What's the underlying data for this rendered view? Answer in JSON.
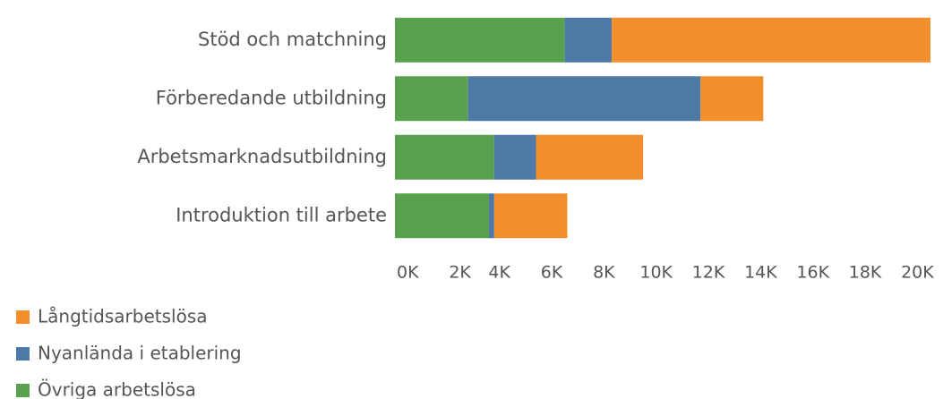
{
  "chart_data": {
    "type": "bar",
    "orientation": "horizontal",
    "stacked": true,
    "categories": [
      "Stöd och matchning",
      "Förberedande utbildning",
      "Arbetsmarknadsutbildning",
      "Introduktion till arbete"
    ],
    "series": [
      {
        "name": "Långtidsarbetslösa",
        "color": "#f28e2b",
        "values": [
          12.2,
          2.4,
          4.1,
          2.8
        ]
      },
      {
        "name": "Nyanlända i etablering",
        "color": "#4e79a7",
        "values": [
          1.8,
          8.9,
          1.6,
          0.2
        ]
      },
      {
        "name": "Övriga arbetslösa",
        "color": "#59a14f",
        "values": [
          6.5,
          2.8,
          3.8,
          3.6
        ]
      }
    ],
    "xlim": [
      0,
      20.5
    ],
    "xticks": [
      {
        "value": 0,
        "label": "0K"
      },
      {
        "value": 2,
        "label": "2K"
      },
      {
        "value": 4,
        "label": "4K"
      },
      {
        "value": 6,
        "label": "6K"
      },
      {
        "value": 8,
        "label": "8K"
      },
      {
        "value": 10,
        "label": "10K"
      },
      {
        "value": 12,
        "label": "12K"
      },
      {
        "value": 14,
        "label": "14K"
      },
      {
        "value": 16,
        "label": "16K"
      },
      {
        "value": 18,
        "label": "18K"
      },
      {
        "value": 20,
        "label": "20K"
      }
    ],
    "grid": false,
    "legend": "bottom-left"
  }
}
